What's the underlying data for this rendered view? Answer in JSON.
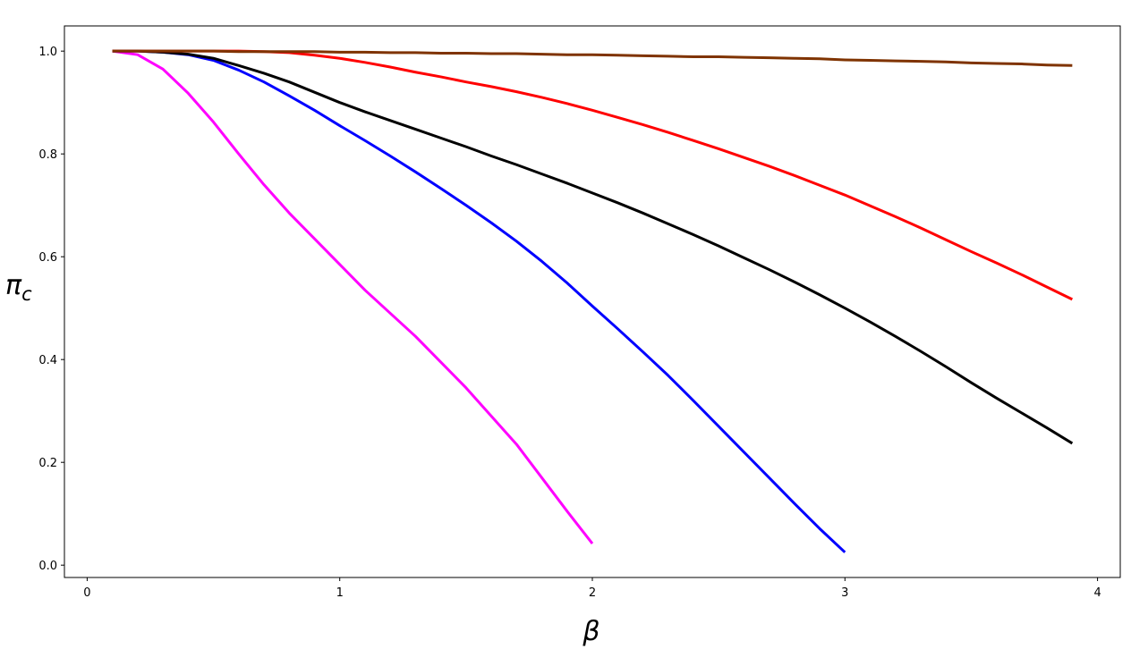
{
  "chart_data": {
    "type": "line",
    "x_label": "β",
    "y_label": "π",
    "y_label_subscript": "c",
    "xlim": [
      -0.09,
      4.09
    ],
    "ylim": [
      -0.024,
      1.049
    ],
    "xticks": [
      0,
      1,
      2,
      3,
      4
    ],
    "yticks": [
      {
        "value": 0,
        "label": "0.0"
      },
      {
        "value": 0.2,
        "label": "0.2"
      },
      {
        "value": 0.4,
        "label": "0.4"
      },
      {
        "value": 0.6,
        "label": "0.6"
      },
      {
        "value": 0.8,
        "label": "0.8"
      },
      {
        "value": 1,
        "label": "1.0"
      }
    ],
    "grid": false,
    "series": [
      {
        "color": "#ff00ff",
        "x": [
          0.1,
          0.2,
          0.3,
          0.4,
          0.5,
          0.6,
          0.7,
          0.8,
          0.9,
          1.0,
          1.1,
          1.2,
          1.3,
          1.4,
          1.5,
          1.6,
          1.7,
          1.8,
          1.9,
          2.0
        ],
        "values": [
          1.0,
          0.993,
          0.965,
          0.918,
          0.862,
          0.8,
          0.74,
          0.685,
          0.635,
          0.585,
          0.535,
          0.49,
          0.445,
          0.395,
          0.345,
          0.29,
          0.235,
          0.17,
          0.105,
          0.042
        ]
      },
      {
        "color": "#0000ff",
        "x": [
          0.1,
          0.2,
          0.3,
          0.4,
          0.5,
          0.6,
          0.7,
          0.8,
          0.9,
          1.0,
          1.1,
          1.2,
          1.3,
          1.4,
          1.5,
          1.6,
          1.7,
          1.8,
          1.9,
          2.0,
          2.1,
          2.2,
          2.3,
          2.4,
          2.5,
          2.6,
          2.7,
          2.8,
          2.9,
          3.0
        ],
        "values": [
          1.0,
          1.0,
          0.998,
          0.993,
          0.982,
          0.963,
          0.94,
          0.913,
          0.885,
          0.855,
          0.826,
          0.796,
          0.765,
          0.733,
          0.7,
          0.666,
          0.63,
          0.591,
          0.549,
          0.504,
          0.46,
          0.415,
          0.369,
          0.32,
          0.27,
          0.22,
          0.17,
          0.12,
          0.071,
          0.025
        ]
      },
      {
        "color": "#000000",
        "x": [
          0.1,
          0.2,
          0.3,
          0.4,
          0.5,
          0.6,
          0.7,
          0.8,
          0.9,
          1.0,
          1.1,
          1.2,
          1.3,
          1.4,
          1.5,
          1.6,
          1.7,
          1.8,
          1.9,
          2.0,
          2.1,
          2.2,
          2.3,
          2.4,
          2.5,
          2.6,
          2.7,
          2.8,
          2.9,
          3.0,
          3.1,
          3.2,
          3.3,
          3.4,
          3.5,
          3.6,
          3.7,
          3.8,
          3.9
        ],
        "values": [
          1.0,
          1.0,
          0.998,
          0.994,
          0.986,
          0.972,
          0.957,
          0.94,
          0.92,
          0.9,
          0.882,
          0.865,
          0.848,
          0.831,
          0.814,
          0.796,
          0.779,
          0.761,
          0.743,
          0.724,
          0.705,
          0.685,
          0.664,
          0.643,
          0.621,
          0.598,
          0.575,
          0.551,
          0.526,
          0.5,
          0.473,
          0.445,
          0.416,
          0.386,
          0.355,
          0.325,
          0.296,
          0.267,
          0.237
        ]
      },
      {
        "color": "#ff0000",
        "x": [
          0.1,
          0.2,
          0.3,
          0.4,
          0.5,
          0.6,
          0.7,
          0.8,
          0.9,
          1.0,
          1.1,
          1.2,
          1.3,
          1.4,
          1.5,
          1.6,
          1.7,
          1.8,
          1.9,
          2.0,
          2.1,
          2.2,
          2.3,
          2.4,
          2.5,
          2.6,
          2.7,
          2.8,
          2.9,
          3.0,
          3.1,
          3.2,
          3.3,
          3.4,
          3.5,
          3.6,
          3.7,
          3.8,
          3.9
        ],
        "values": [
          1.0,
          1.0,
          1.0,
          1.0,
          1.0,
          1.0,
          0.999,
          0.997,
          0.992,
          0.986,
          0.978,
          0.969,
          0.959,
          0.95,
          0.94,
          0.931,
          0.921,
          0.91,
          0.898,
          0.885,
          0.871,
          0.857,
          0.842,
          0.826,
          0.81,
          0.793,
          0.776,
          0.758,
          0.739,
          0.72,
          0.699,
          0.678,
          0.656,
          0.633,
          0.61,
          0.588,
          0.565,
          0.541,
          0.517
        ]
      },
      {
        "color": "#7f3300",
        "x": [
          0.1,
          0.2,
          0.3,
          0.4,
          0.5,
          0.6,
          0.7,
          0.8,
          0.9,
          1.0,
          1.1,
          1.2,
          1.3,
          1.4,
          1.5,
          1.6,
          1.7,
          1.8,
          1.9,
          2.0,
          2.1,
          2.2,
          2.3,
          2.4,
          2.5,
          2.6,
          2.7,
          2.8,
          2.9,
          3.0,
          3.1,
          3.2,
          3.3,
          3.4,
          3.5,
          3.6,
          3.7,
          3.8,
          3.9
        ],
        "values": [
          1.0,
          1.0,
          1.0,
          1.0,
          1.0,
          0.999,
          0.999,
          0.999,
          0.999,
          0.998,
          0.998,
          0.997,
          0.997,
          0.996,
          0.996,
          0.995,
          0.995,
          0.994,
          0.993,
          0.993,
          0.992,
          0.991,
          0.99,
          0.989,
          0.989,
          0.988,
          0.987,
          0.986,
          0.985,
          0.983,
          0.982,
          0.981,
          0.98,
          0.979,
          0.977,
          0.976,
          0.975,
          0.973,
          0.972
        ]
      }
    ]
  }
}
